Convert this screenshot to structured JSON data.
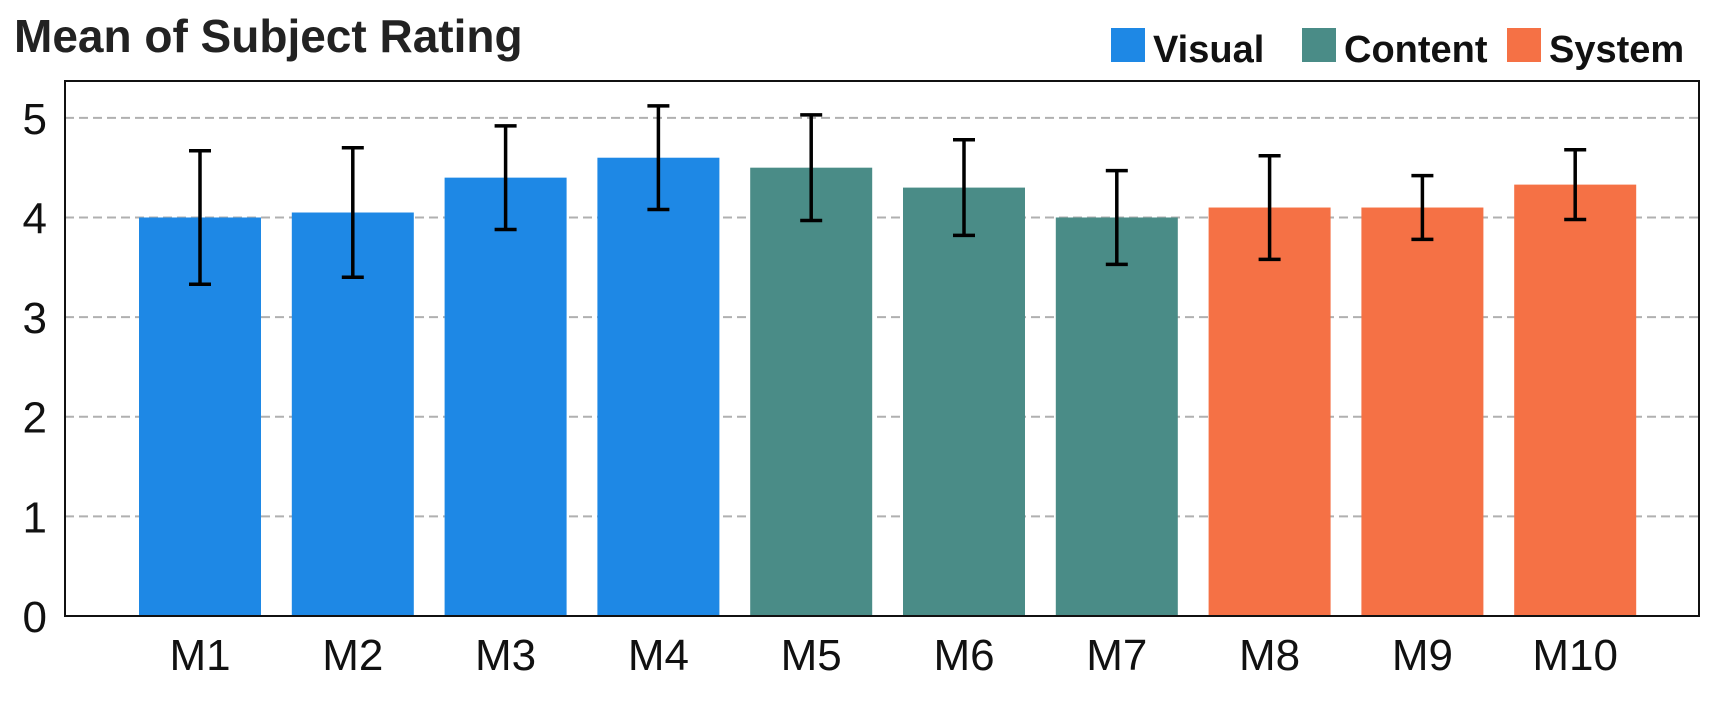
{
  "chart_data": {
    "type": "bar",
    "title": "Mean of Subject Rating",
    "categories": [
      "M1",
      "M2",
      "M3",
      "M4",
      "M5",
      "M6",
      "M7",
      "M8",
      "M9",
      "M10"
    ],
    "values": [
      4.0,
      4.05,
      4.4,
      4.6,
      4.5,
      4.3,
      4.0,
      4.1,
      4.1,
      4.33
    ],
    "error": [
      0.67,
      0.65,
      0.52,
      0.52,
      0.53,
      0.48,
      0.47,
      0.52,
      0.32,
      0.35
    ],
    "groups": [
      "Visual",
      "Visual",
      "Visual",
      "Visual",
      "Content",
      "Content",
      "Content",
      "System",
      "System",
      "System"
    ],
    "legend": [
      {
        "name": "Visual",
        "color": "#1e88e5"
      },
      {
        "name": "Content",
        "color": "#4a8c87"
      },
      {
        "name": "System",
        "color": "#f57145"
      }
    ],
    "legend_position": "top-right",
    "xlabel": "",
    "ylabel": "",
    "ylim": [
      0,
      5.37
    ],
    "yticks": [
      0,
      1,
      2,
      3,
      4,
      5
    ],
    "grid": "y-dashed"
  }
}
